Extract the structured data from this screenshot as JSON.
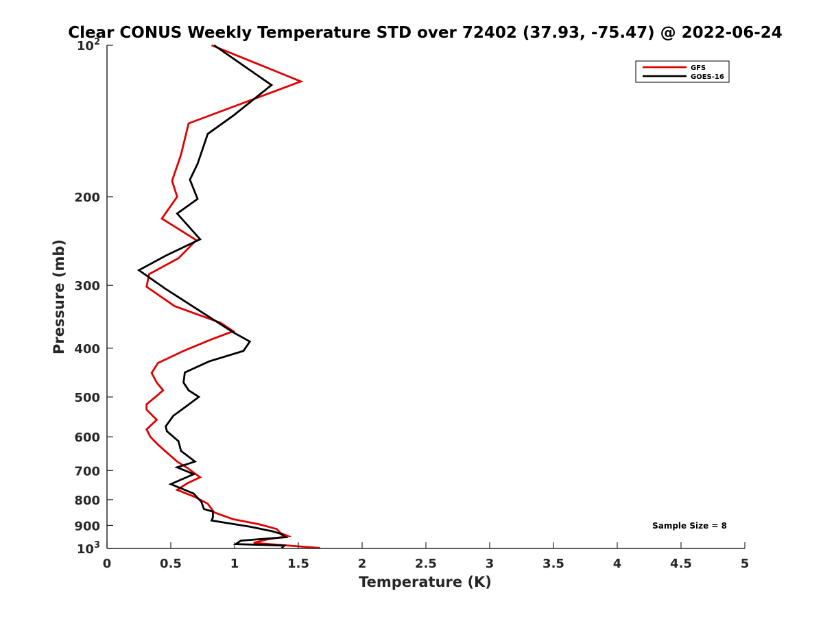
{
  "chart_data": {
    "type": "line",
    "title": "Clear CONUS Weekly Temperature STD over 72402 (37.93, -75.47) @ 2022-06-24",
    "xlabel": "Temperature (K)",
    "ylabel": "Pressure (mb)",
    "xlim": [
      0,
      5
    ],
    "ylim": [
      100,
      1000
    ],
    "yscale": "log",
    "yreversed": true,
    "x_ticks": [
      0,
      0.5,
      1,
      1.5,
      2,
      2.5,
      3,
      3.5,
      4,
      4.5,
      5
    ],
    "x_tick_labels": [
      "0",
      "0.5",
      "1",
      "1.5",
      "2",
      "2.5",
      "3",
      "3.5",
      "4",
      "4.5",
      "5"
    ],
    "y_ticks": [
      100,
      200,
      300,
      400,
      500,
      600,
      700,
      800,
      900,
      1000
    ],
    "y_tick_labels": [
      {
        "base": "10",
        "exp": "2"
      },
      {
        "base": "200",
        "exp": ""
      },
      {
        "base": "300",
        "exp": ""
      },
      {
        "base": "400",
        "exp": ""
      },
      {
        "base": "500",
        "exp": ""
      },
      {
        "base": "600",
        "exp": ""
      },
      {
        "base": "700",
        "exp": ""
      },
      {
        "base": "800",
        "exp": ""
      },
      {
        "base": "900",
        "exp": ""
      },
      {
        "base": "10",
        "exp": "3"
      }
    ],
    "grid": false,
    "legend_position": "top-right",
    "annotation": "Sample Size = 8",
    "series": [
      {
        "name": "GFS",
        "color": "#e00000",
        "points": [
          [
            0.82,
            100
          ],
          [
            1.52,
            118
          ],
          [
            0.64,
            143
          ],
          [
            0.58,
            165
          ],
          [
            0.51,
            186
          ],
          [
            0.55,
            200
          ],
          [
            0.43,
            221
          ],
          [
            0.7,
            244
          ],
          [
            0.56,
            265
          ],
          [
            0.33,
            285
          ],
          [
            0.31,
            302
          ],
          [
            0.53,
            330
          ],
          [
            0.89,
            356
          ],
          [
            0.99,
            370
          ],
          [
            0.81,
            385
          ],
          [
            0.6,
            405
          ],
          [
            0.4,
            428
          ],
          [
            0.35,
            448
          ],
          [
            0.39,
            468
          ],
          [
            0.44,
            485
          ],
          [
            0.38,
            500
          ],
          [
            0.31,
            517
          ],
          [
            0.31,
            530
          ],
          [
            0.39,
            555
          ],
          [
            0.31,
            580
          ],
          [
            0.34,
            600
          ],
          [
            0.4,
            622
          ],
          [
            0.46,
            642
          ],
          [
            0.55,
            672
          ],
          [
            0.63,
            692
          ],
          [
            0.73,
            722
          ],
          [
            0.63,
            742
          ],
          [
            0.55,
            765
          ],
          [
            0.69,
            790
          ],
          [
            0.79,
            815
          ],
          [
            0.84,
            848
          ],
          [
            0.99,
            875
          ],
          [
            1.19,
            895
          ],
          [
            1.33,
            915
          ],
          [
            1.36,
            932
          ],
          [
            1.42,
            945
          ],
          [
            1.25,
            960
          ],
          [
            1.15,
            975
          ],
          [
            1.67,
            998
          ]
        ]
      },
      {
        "name": "GOES-16",
        "color": "#000000",
        "points": [
          [
            0.84,
            100
          ],
          [
            1.29,
            120
          ],
          [
            0.99,
            138
          ],
          [
            0.79,
            150
          ],
          [
            0.71,
            172
          ],
          [
            0.65,
            185
          ],
          [
            0.71,
            202
          ],
          [
            0.55,
            216
          ],
          [
            0.73,
            243
          ],
          [
            0.46,
            262
          ],
          [
            0.25,
            280
          ],
          [
            0.46,
            305
          ],
          [
            0.71,
            335
          ],
          [
            0.99,
            372
          ],
          [
            1.12,
            388
          ],
          [
            1.07,
            405
          ],
          [
            0.8,
            425
          ],
          [
            0.61,
            447
          ],
          [
            0.6,
            468
          ],
          [
            0.64,
            485
          ],
          [
            0.72,
            500
          ],
          [
            0.63,
            520
          ],
          [
            0.52,
            545
          ],
          [
            0.46,
            572
          ],
          [
            0.47,
            585
          ],
          [
            0.56,
            612
          ],
          [
            0.58,
            640
          ],
          [
            0.69,
            672
          ],
          [
            0.55,
            690
          ],
          [
            0.68,
            712
          ],
          [
            0.5,
            745
          ],
          [
            0.68,
            778
          ],
          [
            0.74,
            808
          ],
          [
            0.76,
            835
          ],
          [
            0.83,
            845
          ],
          [
            0.83,
            868
          ],
          [
            0.82,
            880
          ],
          [
            1.12,
            905
          ],
          [
            1.3,
            925
          ],
          [
            1.36,
            935
          ],
          [
            1.4,
            950
          ],
          [
            1.05,
            965
          ],
          [
            1.01,
            980
          ],
          [
            1.39,
            987
          ],
          [
            1.37,
            998
          ]
        ]
      }
    ]
  }
}
